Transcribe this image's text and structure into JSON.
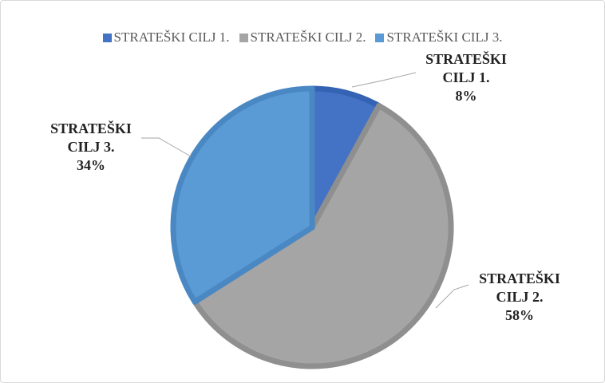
{
  "chart_data": {
    "type": "pie",
    "categories": [
      "STRATEŠKI CILJ 1.",
      "STRATEŠKI CILJ 2.",
      "STRATEŠKI CILJ 3."
    ],
    "values": [
      8,
      58,
      34
    ],
    "value_labels": [
      "8%",
      "58%",
      "34%"
    ],
    "colors": [
      "#4472c4",
      "#a5a5a5",
      "#5b9bd5"
    ],
    "edge_colors": [
      "#3563b3",
      "#8f8f8f",
      "#4a88c4"
    ],
    "legend": "top"
  }
}
